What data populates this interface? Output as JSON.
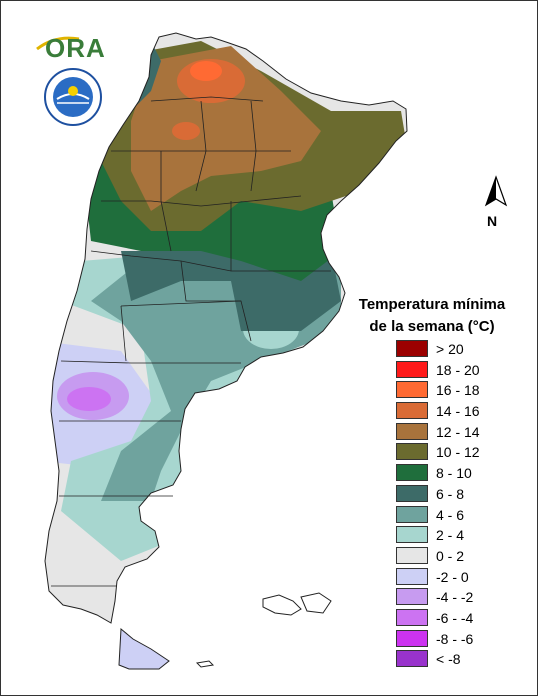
{
  "logos": {
    "ora_text": "ORA",
    "seal_text": "SERVICIO METEOROLÓGICO NACIONAL · ARGENTINA"
  },
  "north_arrow": {
    "label": "N"
  },
  "legend": {
    "title_line1": "Temperatura mínima",
    "title_line2": "de la semana (°C)",
    "items": [
      {
        "label": "> 20",
        "color": "#9b0000"
      },
      {
        "label": "18 - 20",
        "color": "#ff1a1a"
      },
      {
        "label": "16 - 18",
        "color": "#ff6a33"
      },
      {
        "label": "14 - 16",
        "color": "#d96b36"
      },
      {
        "label": "12 - 14",
        "color": "#a8733c"
      },
      {
        "label": "10 - 12",
        "color": "#6b6b2f"
      },
      {
        "label": "8 - 10",
        "color": "#1f6e3c"
      },
      {
        "label": "6 - 8",
        "color": "#3d6b68"
      },
      {
        "label": "4 - 6",
        "color": "#6fa39e"
      },
      {
        "label": "2 - 4",
        "color": "#a7d6cf"
      },
      {
        "label": "0 - 2",
        "color": "#e6e6e6"
      },
      {
        "label": "-2 - 0",
        "color": "#cdd0f5"
      },
      {
        "label": "-4 - -2",
        "color": "#c79bf0"
      },
      {
        "label": "-6 - -4",
        "color": "#cc73f2"
      },
      {
        "label": "-8 - -6",
        "color": "#cc33f0"
      },
      {
        "label": "< -8",
        "color": "#9933cc"
      }
    ]
  }
}
